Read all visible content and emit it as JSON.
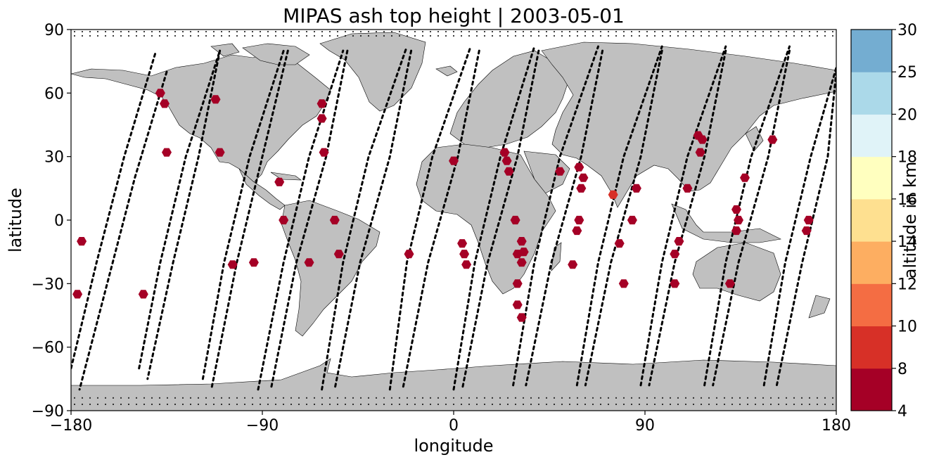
{
  "title": "MIPAS ash top height | 2003-05-01",
  "xlabel": "longitude",
  "ylabel": "latitude",
  "colorbar_label": "altitude in km",
  "colors": {
    "land": "#c0c0c0",
    "coast": "#000000",
    "track": "#000000"
  },
  "chart_data": {
    "type": "scatter",
    "projection": "plate-carree",
    "xlim": [
      -180,
      180
    ],
    "ylim": [
      -90,
      90
    ],
    "xticks": [
      -180,
      -90,
      0,
      90,
      180
    ],
    "xtick_labels": [
      "−180",
      "−90",
      "0",
      "90",
      "180"
    ],
    "yticks": [
      -90,
      -60,
      -30,
      0,
      30,
      60,
      90
    ],
    "ytick_labels": [
      "−90",
      "−60",
      "−30",
      "0",
      "30",
      "60",
      "90"
    ],
    "colorbar": {
      "bounds": [
        4,
        8,
        10,
        12,
        14,
        16,
        18,
        20,
        25,
        30
      ],
      "tick_labels": [
        "4",
        "8",
        "10",
        "12",
        "14",
        "16",
        "18",
        "20",
        "25",
        "30"
      ],
      "colors": [
        "#a50026",
        "#d73027",
        "#f46d43",
        "#fdae61",
        "#fee090",
        "#ffffbf",
        "#e0f3f8",
        "#abd9e9",
        "#74add1",
        "#313695"
      ]
    },
    "ash_points": [
      {
        "lon": -177,
        "lat": -35,
        "alt": 6
      },
      {
        "lon": -175,
        "lat": -10,
        "alt": 6
      },
      {
        "lon": -146,
        "lat": -35,
        "alt": 6
      },
      {
        "lon": -138,
        "lat": 60,
        "alt": 6
      },
      {
        "lon": -136,
        "lat": 55,
        "alt": 6
      },
      {
        "lon": -135,
        "lat": 32,
        "alt": 6
      },
      {
        "lon": -112,
        "lat": 57,
        "alt": 6
      },
      {
        "lon": -110,
        "lat": 32,
        "alt": 6
      },
      {
        "lon": -104,
        "lat": -21,
        "alt": 6
      },
      {
        "lon": -94,
        "lat": -20,
        "alt": 6
      },
      {
        "lon": -82,
        "lat": 18,
        "alt": 6
      },
      {
        "lon": -80,
        "lat": 0,
        "alt": 6
      },
      {
        "lon": -68,
        "lat": -20,
        "alt": 6
      },
      {
        "lon": -62,
        "lat": 55,
        "alt": 6
      },
      {
        "lon": -62,
        "lat": 48,
        "alt": 6
      },
      {
        "lon": -61,
        "lat": 32,
        "alt": 6
      },
      {
        "lon": -56,
        "lat": 0,
        "alt": 6
      },
      {
        "lon": -54,
        "lat": -16,
        "alt": 6
      },
      {
        "lon": -21,
        "lat": -16,
        "alt": 6
      },
      {
        "lon": 0,
        "lat": 28,
        "alt": 6
      },
      {
        "lon": 4,
        "lat": -11,
        "alt": 6
      },
      {
        "lon": 5,
        "lat": -16,
        "alt": 6
      },
      {
        "lon": 6,
        "lat": -21,
        "alt": 6
      },
      {
        "lon": 24,
        "lat": 32,
        "alt": 6
      },
      {
        "lon": 25,
        "lat": 28,
        "alt": 6
      },
      {
        "lon": 26,
        "lat": 23,
        "alt": 6
      },
      {
        "lon": 29,
        "lat": 0,
        "alt": 6
      },
      {
        "lon": 30,
        "lat": -16,
        "alt": 6
      },
      {
        "lon": 30,
        "lat": -30,
        "alt": 6
      },
      {
        "lon": 30,
        "lat": -40,
        "alt": 6
      },
      {
        "lon": 32,
        "lat": -10,
        "alt": 6
      },
      {
        "lon": 32,
        "lat": -20,
        "alt": 6
      },
      {
        "lon": 33,
        "lat": -15,
        "alt": 6
      },
      {
        "lon": 32,
        "lat": -46,
        "alt": 6
      },
      {
        "lon": 50,
        "lat": 23,
        "alt": 6
      },
      {
        "lon": 56,
        "lat": -21,
        "alt": 6
      },
      {
        "lon": 58,
        "lat": -5,
        "alt": 6
      },
      {
        "lon": 59,
        "lat": 0,
        "alt": 6
      },
      {
        "lon": 59,
        "lat": 25,
        "alt": 6
      },
      {
        "lon": 60,
        "lat": 15,
        "alt": 6
      },
      {
        "lon": 61,
        "lat": 20,
        "alt": 6
      },
      {
        "lon": 75,
        "lat": 12,
        "alt": 9
      },
      {
        "lon": 78,
        "lat": -11,
        "alt": 6
      },
      {
        "lon": 80,
        "lat": -30,
        "alt": 6
      },
      {
        "lon": 84,
        "lat": 0,
        "alt": 6
      },
      {
        "lon": 86,
        "lat": 15,
        "alt": 6
      },
      {
        "lon": 104,
        "lat": -16,
        "alt": 6
      },
      {
        "lon": 104,
        "lat": -30,
        "alt": 6
      },
      {
        "lon": 106,
        "lat": -10,
        "alt": 6
      },
      {
        "lon": 110,
        "lat": 15,
        "alt": 6
      },
      {
        "lon": 115,
        "lat": 40,
        "alt": 6
      },
      {
        "lon": 116,
        "lat": 32,
        "alt": 6
      },
      {
        "lon": 117,
        "lat": 38,
        "alt": 6
      },
      {
        "lon": 130,
        "lat": -30,
        "alt": 6
      },
      {
        "lon": 133,
        "lat": 5,
        "alt": 6
      },
      {
        "lon": 133,
        "lat": -5,
        "alt": 6
      },
      {
        "lon": 134,
        "lat": 0,
        "alt": 6
      },
      {
        "lon": 137,
        "lat": 20,
        "alt": 6
      },
      {
        "lon": 150,
        "lat": 38,
        "alt": 6
      },
      {
        "lon": 166,
        "lat": -5,
        "alt": 6
      },
      {
        "lon": 167,
        "lat": 0,
        "alt": 6
      }
    ],
    "orbit_tracks": [
      {
        "direction": "ascending",
        "points": [
          [
            -180,
            -70
          ],
          [
            -168,
            -20
          ],
          [
            -155,
            30
          ],
          [
            -140,
            80
          ]
        ]
      },
      {
        "direction": "descending",
        "points": [
          [
            -135,
            70
          ],
          [
            -150,
            20
          ],
          [
            -163,
            -30
          ],
          [
            -176,
            -80
          ]
        ]
      },
      {
        "direction": "ascending",
        "points": [
          [
            -148,
            -70
          ],
          [
            -138,
            -20
          ],
          [
            -126,
            30
          ],
          [
            -110,
            80
          ]
        ]
      },
      {
        "direction": "descending",
        "points": [
          [
            -110,
            80
          ],
          [
            -120,
            30
          ],
          [
            -132,
            -20
          ],
          [
            -144,
            -75
          ]
        ]
      },
      {
        "direction": "ascending",
        "points": [
          [
            -118,
            -75
          ],
          [
            -108,
            -20
          ],
          [
            -96,
            30
          ],
          [
            -80,
            80
          ]
        ]
      },
      {
        "direction": "descending",
        "points": [
          [
            -78,
            80
          ],
          [
            -90,
            30
          ],
          [
            -102,
            -20
          ],
          [
            -114,
            -80
          ]
        ]
      },
      {
        "direction": "ascending",
        "points": [
          [
            -92,
            -80
          ],
          [
            -80,
            -20
          ],
          [
            -68,
            30
          ],
          [
            -52,
            80
          ]
        ]
      },
      {
        "direction": "descending",
        "points": [
          [
            -50,
            80
          ],
          [
            -60,
            30
          ],
          [
            -74,
            -20
          ],
          [
            -86,
            -80
          ]
        ]
      },
      {
        "direction": "ascending",
        "points": [
          [
            -62,
            -80
          ],
          [
            -52,
            -20
          ],
          [
            -40,
            30
          ],
          [
            -22,
            82
          ]
        ]
      },
      {
        "direction": "descending",
        "points": [
          [
            -20,
            80
          ],
          [
            -30,
            30
          ],
          [
            -44,
            -20
          ],
          [
            -56,
            -80
          ]
        ]
      },
      {
        "direction": "ascending",
        "points": [
          [
            -30,
            -80
          ],
          [
            -22,
            -20
          ],
          [
            -10,
            30
          ],
          [
            8,
            82
          ]
        ]
      },
      {
        "direction": "descending",
        "points": [
          [
            12,
            80
          ],
          [
            2,
            30
          ],
          [
            -12,
            -20
          ],
          [
            -24,
            -80
          ]
        ]
      },
      {
        "direction": "ascending",
        "points": [
          [
            0,
            -80
          ],
          [
            10,
            -20
          ],
          [
            22,
            30
          ],
          [
            38,
            82
          ]
        ]
      },
      {
        "direction": "descending",
        "points": [
          [
            40,
            80
          ],
          [
            30,
            30
          ],
          [
            16,
            -20
          ],
          [
            4,
            -80
          ]
        ]
      },
      {
        "direction": "ascending",
        "points": [
          [
            28,
            -78
          ],
          [
            38,
            -20
          ],
          [
            50,
            30
          ],
          [
            68,
            82
          ]
        ]
      },
      {
        "direction": "descending",
        "points": [
          [
            70,
            80
          ],
          [
            60,
            30
          ],
          [
            46,
            -20
          ],
          [
            34,
            -78
          ]
        ]
      },
      {
        "direction": "ascending",
        "points": [
          [
            58,
            -78
          ],
          [
            68,
            -20
          ],
          [
            80,
            30
          ],
          [
            98,
            82
          ]
        ]
      },
      {
        "direction": "descending",
        "points": [
          [
            98,
            80
          ],
          [
            88,
            30
          ],
          [
            74,
            -20
          ],
          [
            62,
            -78
          ]
        ]
      },
      {
        "direction": "ascending",
        "points": [
          [
            88,
            -78
          ],
          [
            98,
            -20
          ],
          [
            110,
            30
          ],
          [
            128,
            82
          ]
        ]
      },
      {
        "direction": "descending",
        "points": [
          [
            128,
            80
          ],
          [
            118,
            30
          ],
          [
            104,
            -20
          ],
          [
            92,
            -78
          ]
        ]
      },
      {
        "direction": "ascending",
        "points": [
          [
            118,
            -78
          ],
          [
            128,
            -20
          ],
          [
            140,
            30
          ],
          [
            158,
            82
          ]
        ]
      },
      {
        "direction": "descending",
        "points": [
          [
            158,
            80
          ],
          [
            148,
            30
          ],
          [
            134,
            -20
          ],
          [
            122,
            -78
          ]
        ]
      },
      {
        "direction": "ascending",
        "points": [
          [
            146,
            -78
          ],
          [
            156,
            -20
          ],
          [
            168,
            30
          ],
          [
            180,
            72
          ]
        ]
      },
      {
        "direction": "descending",
        "points": [
          [
            180,
            70
          ],
          [
            176,
            30
          ],
          [
            164,
            -20
          ],
          [
            152,
            -78
          ]
        ]
      }
    ]
  }
}
